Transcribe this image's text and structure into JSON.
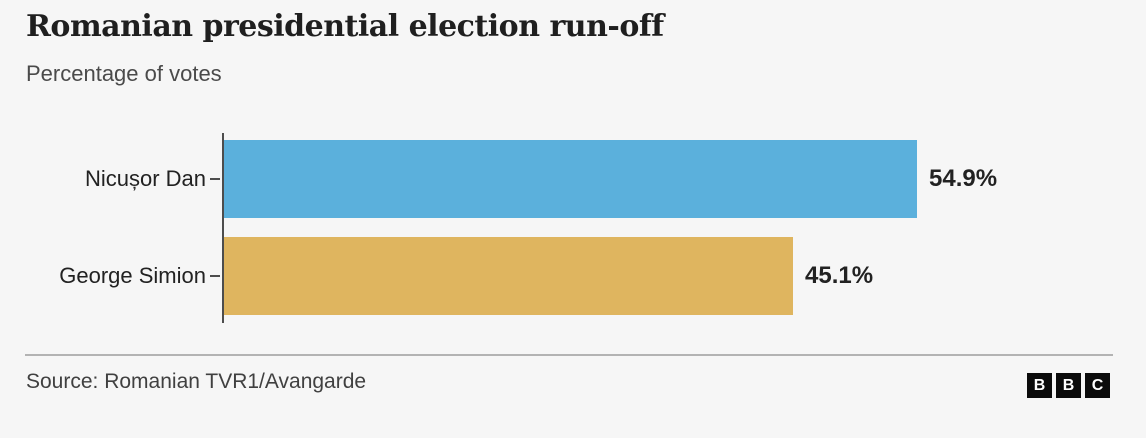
{
  "header": {
    "title": "Romanian presidential election run-off",
    "subtitle": "Percentage of votes"
  },
  "chart_data": {
    "type": "bar",
    "orientation": "horizontal",
    "title": "Romanian presidential election run-off",
    "subtitle": "Percentage of votes",
    "categories": [
      "Nicușor Dan",
      "George Simion"
    ],
    "values": [
      54.9,
      45.1
    ],
    "value_labels": [
      "54.9%",
      "45.1%"
    ],
    "bar_colors": [
      "#5BB0DC",
      "#DFB55F"
    ],
    "xlim": [
      0,
      71
    ],
    "grid": false,
    "legend": "none",
    "axis_color": "#4d4d4d"
  },
  "footer": {
    "source": "Source: Romanian TVR1/Avangarde",
    "logo_letters": [
      "B",
      "B",
      "C"
    ]
  },
  "colors": {
    "background": "#f6f6f6",
    "text_primary": "#222222",
    "text_secondary": "#4a4a4a",
    "divider": "#b3b3b3"
  }
}
